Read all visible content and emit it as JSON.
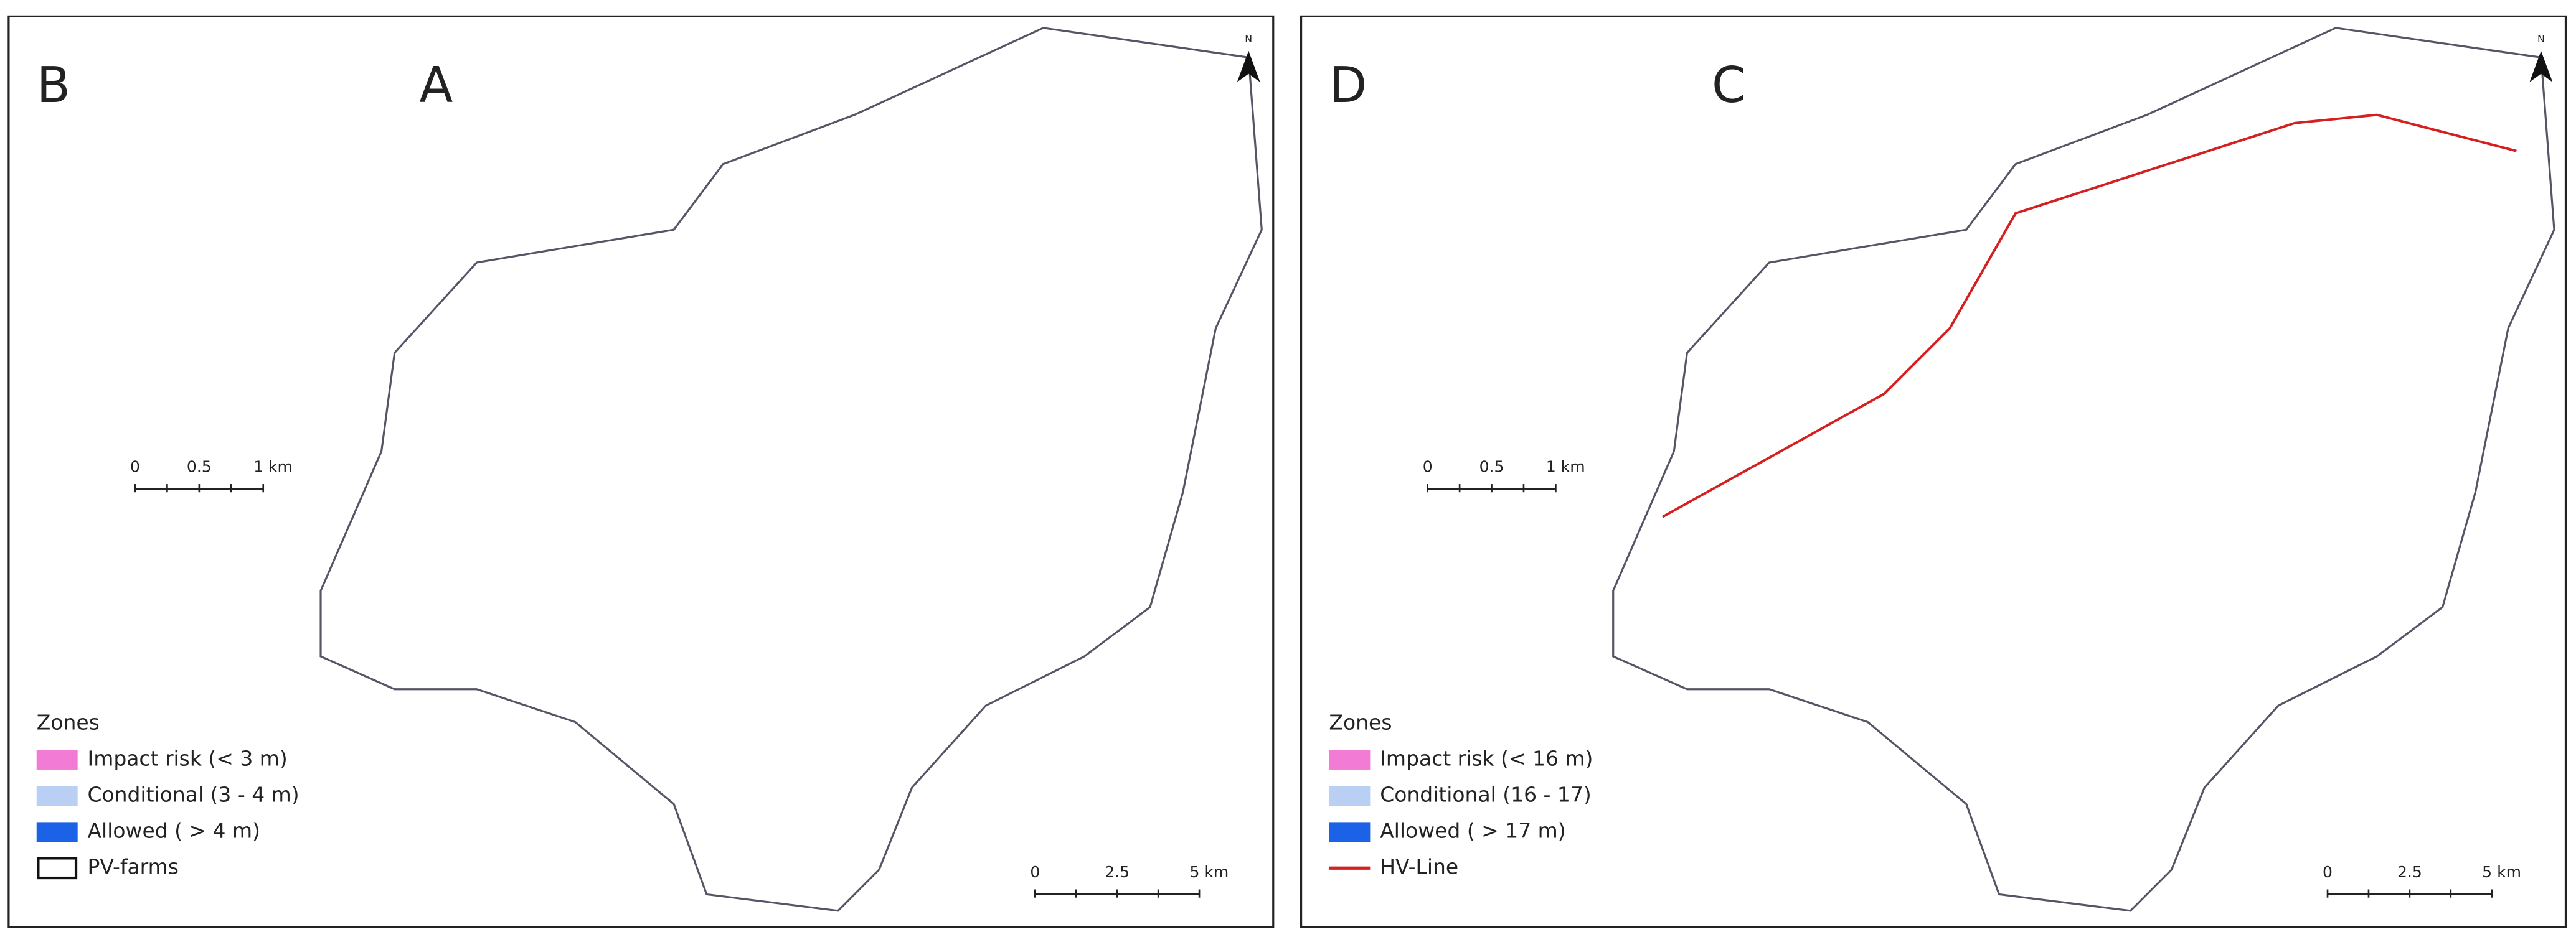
{
  "panels": [
    {
      "label": "A",
      "north": "N",
      "inset": {
        "label": "B",
        "scale": [
          "0",
          "0.5",
          "1 km"
        ]
      },
      "scale": [
        "0",
        "2.5",
        "5 km"
      ],
      "legend": {
        "title": "Zones",
        "items": [
          "Impact risk (< 3 m)",
          "Conditional (3 - 4 m)",
          "Allowed ( > 4 m)",
          "PV-farms"
        ]
      }
    },
    {
      "label": "C",
      "north": "N",
      "inset": {
        "label": "D",
        "scale": [
          "0",
          "0.5",
          "1 km"
        ]
      },
      "scale": [
        "0",
        "2.5",
        "5 km"
      ],
      "legend": {
        "title": "Zones",
        "items": [
          "Impact risk (< 16 m)",
          "Conditional (16 - 17)",
          "Allowed ( > 17 m)",
          "HV-Line"
        ]
      }
    }
  ]
}
